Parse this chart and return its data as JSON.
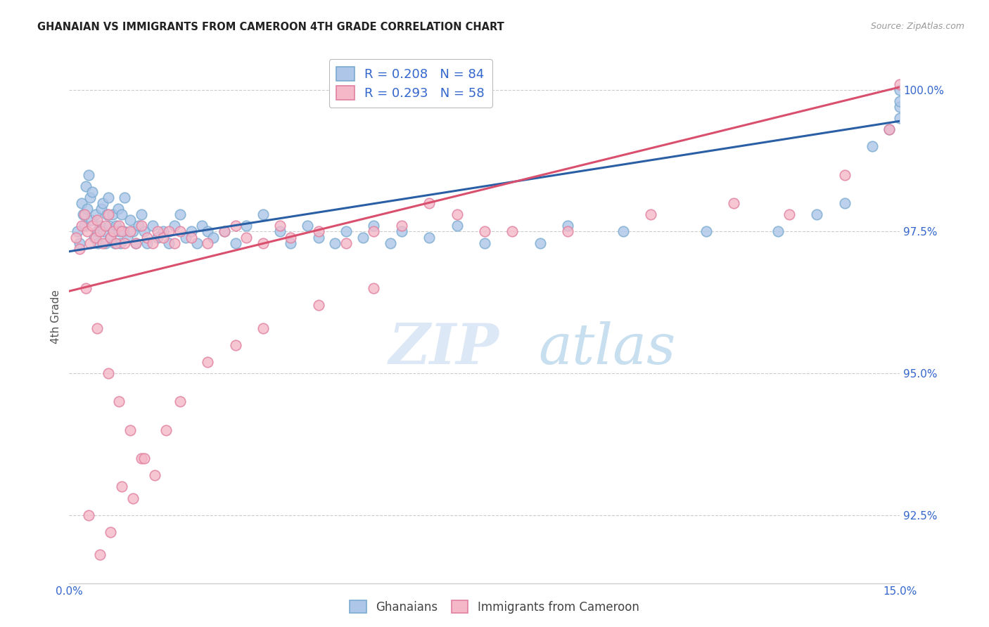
{
  "title": "GHANAIAN VS IMMIGRANTS FROM CAMEROON 4TH GRADE CORRELATION CHART",
  "source": "Source: ZipAtlas.com",
  "ylabel": "4th Grade",
  "xlim": [
    0.0,
    15.0
  ],
  "ylim": [
    91.3,
    100.7
  ],
  "yticks": [
    92.5,
    95.0,
    97.5,
    100.0
  ],
  "ytick_labels": [
    "92.5%",
    "95.0%",
    "97.5%",
    "100.0%"
  ],
  "xticks": [
    0.0,
    3.0,
    6.0,
    9.0,
    12.0,
    15.0
  ],
  "xtick_labels": [
    "0.0%",
    "",
    "",
    "",
    "",
    "15.0%"
  ],
  "legend_r1": "R = 0.208   N = 84",
  "legend_r2": "R = 0.293   N = 58",
  "blue_color": "#aec6e8",
  "pink_color": "#f5b8c8",
  "blue_edge_color": "#7aacd0",
  "pink_edge_color": "#e080a0",
  "blue_line_color": "#2b5fa5",
  "pink_line_color": "#d94f6e",
  "legend_text_color": "#3366cc",
  "title_color": "#222222",
  "axis_color": "#3366cc",
  "watermark_zip_color": "#dce8f5",
  "watermark_atlas_color": "#c8dff0",
  "background_color": "#ffffff",
  "blue_line_y0": 97.15,
  "blue_line_y1": 99.45,
  "pink_line_y0": 96.45,
  "pink_line_y1": 100.05,
  "blue_scatter_x": [
    0.15,
    0.18,
    0.22,
    0.25,
    0.28,
    0.3,
    0.32,
    0.35,
    0.38,
    0.4,
    0.42,
    0.45,
    0.48,
    0.5,
    0.52,
    0.55,
    0.58,
    0.6,
    0.62,
    0.65,
    0.68,
    0.7,
    0.72,
    0.75,
    0.78,
    0.8,
    0.82,
    0.85,
    0.88,
    0.9,
    0.92,
    0.95,
    0.98,
    1.0,
    1.05,
    1.1,
    1.15,
    1.2,
    1.25,
    1.3,
    1.35,
    1.4,
    1.5,
    1.6,
    1.7,
    1.8,
    1.9,
    2.0,
    2.1,
    2.2,
    2.3,
    2.4,
    2.5,
    2.6,
    2.8,
    3.0,
    3.2,
    3.5,
    3.8,
    4.0,
    4.3,
    4.5,
    4.8,
    5.0,
    5.3,
    5.5,
    5.8,
    6.0,
    6.5,
    7.0,
    7.5,
    8.5,
    9.0,
    10.0,
    11.5,
    12.8,
    13.5,
    14.0,
    14.5,
    14.8,
    15.0,
    15.0,
    15.0,
    15.0
  ],
  "blue_scatter_y": [
    97.5,
    97.3,
    98.0,
    97.8,
    97.6,
    98.3,
    97.9,
    98.5,
    98.1,
    97.7,
    98.2,
    97.4,
    97.8,
    97.5,
    97.3,
    97.6,
    97.9,
    98.0,
    97.5,
    97.3,
    97.8,
    98.1,
    97.6,
    97.4,
    97.8,
    97.5,
    97.3,
    97.6,
    97.9,
    97.5,
    97.3,
    97.8,
    97.5,
    98.1,
    97.4,
    97.7,
    97.5,
    97.3,
    97.6,
    97.8,
    97.5,
    97.3,
    97.6,
    97.4,
    97.5,
    97.3,
    97.6,
    97.8,
    97.4,
    97.5,
    97.3,
    97.6,
    97.5,
    97.4,
    97.5,
    97.3,
    97.6,
    97.8,
    97.5,
    97.3,
    97.6,
    97.4,
    97.3,
    97.5,
    97.4,
    97.6,
    97.3,
    97.5,
    97.4,
    97.6,
    97.3,
    97.3,
    97.6,
    97.5,
    97.5,
    97.5,
    97.8,
    98.0,
    99.0,
    99.3,
    99.5,
    99.7,
    99.8,
    100.0
  ],
  "pink_scatter_x": [
    0.12,
    0.18,
    0.22,
    0.28,
    0.32,
    0.38,
    0.42,
    0.48,
    0.5,
    0.55,
    0.6,
    0.65,
    0.7,
    0.75,
    0.8,
    0.85,
    0.9,
    0.95,
    1.0,
    1.1,
    1.2,
    1.3,
    1.4,
    1.5,
    1.6,
    1.7,
    1.8,
    1.9,
    2.0,
    2.2,
    2.5,
    2.8,
    3.0,
    3.2,
    3.5,
    3.8,
    4.0,
    4.5,
    5.0,
    5.5,
    6.0,
    6.5,
    7.0,
    7.5,
    8.0,
    9.0,
    10.5,
    12.0,
    13.0,
    14.0,
    14.8,
    15.0,
    0.3,
    0.5,
    0.7,
    0.9,
    1.1,
    1.3
  ],
  "pink_scatter_y": [
    97.4,
    97.2,
    97.6,
    97.8,
    97.5,
    97.3,
    97.6,
    97.4,
    97.7,
    97.5,
    97.3,
    97.6,
    97.8,
    97.4,
    97.5,
    97.3,
    97.6,
    97.5,
    97.3,
    97.5,
    97.3,
    97.6,
    97.4,
    97.3,
    97.5,
    97.4,
    97.5,
    97.3,
    97.5,
    97.4,
    97.3,
    97.5,
    97.6,
    97.4,
    97.3,
    97.6,
    97.4,
    97.5,
    97.3,
    97.5,
    97.6,
    98.0,
    97.8,
    97.5,
    97.5,
    97.5,
    97.8,
    98.0,
    97.8,
    98.5,
    99.3,
    100.1,
    96.5,
    95.8,
    95.0,
    94.5,
    94.0,
    93.5
  ],
  "pink_low_x": [
    0.35,
    0.55,
    0.75,
    0.95,
    1.15,
    1.35,
    1.55,
    1.75,
    2.0,
    2.5,
    3.0,
    3.5,
    4.5,
    5.5
  ],
  "pink_low_y": [
    92.5,
    91.8,
    92.2,
    93.0,
    92.8,
    93.5,
    93.2,
    94.0,
    94.5,
    95.2,
    95.5,
    95.8,
    96.2,
    96.5
  ]
}
